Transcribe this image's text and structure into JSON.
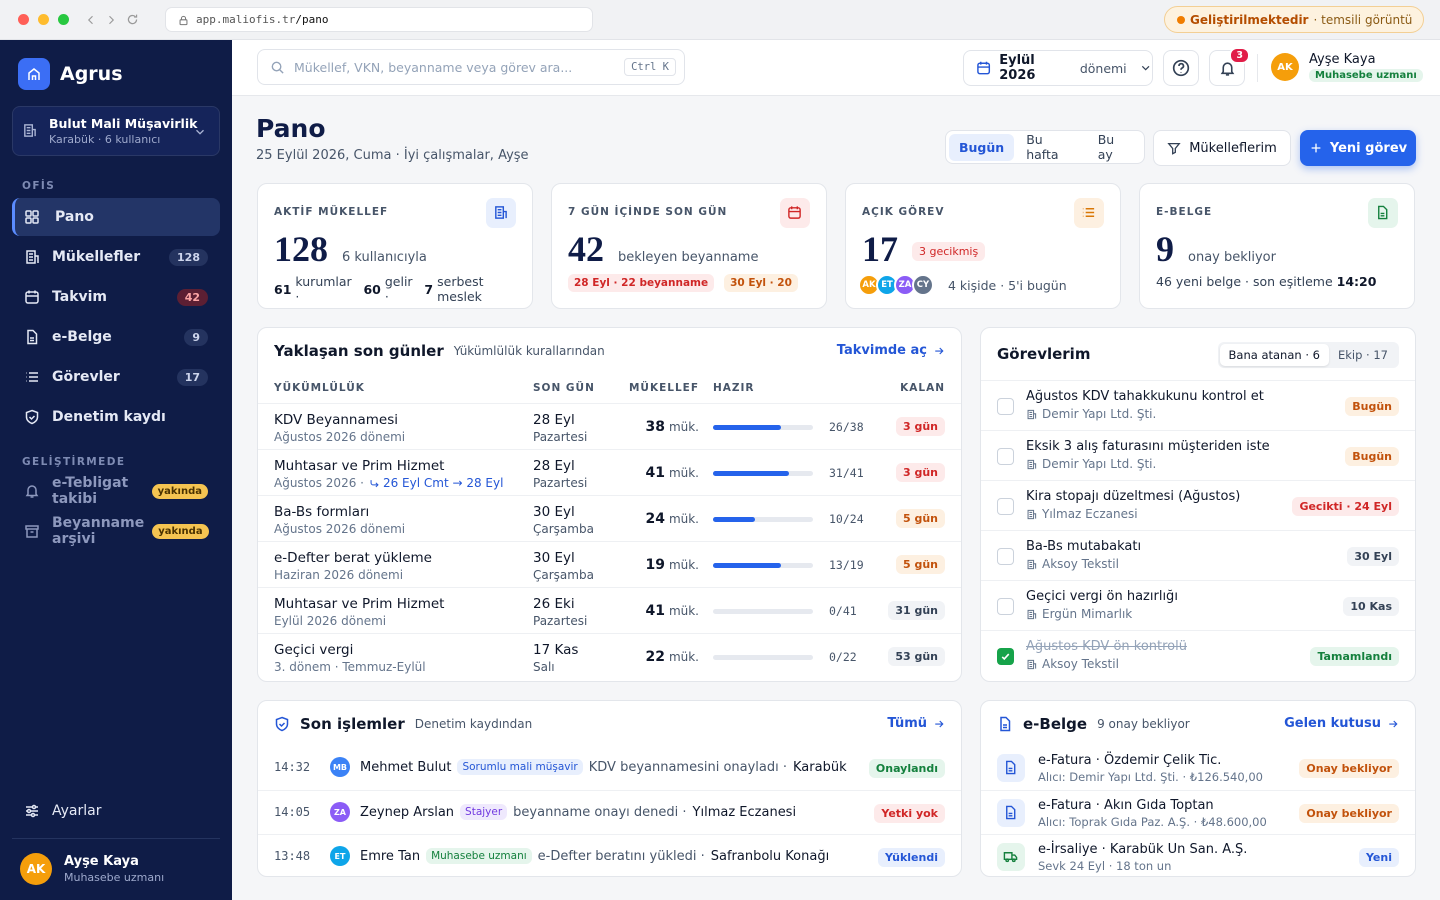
{
  "browser": {
    "url_host": "app.maliofis.tr",
    "url_path": "/pano",
    "banner_title": "Geliştirilmektedir",
    "banner_note": "· temsili görüntü"
  },
  "sidebar": {
    "brand": "Agrus",
    "org": {
      "name": "Bulut Mali Müşavirlik",
      "meta": "Karabük · 6 kullanıcı"
    },
    "sections": [
      {
        "label": "OFİS",
        "items": [
          {
            "label": "Pano",
            "active": true
          },
          {
            "label": "Mükellefler",
            "count": "128",
            "tone": "gray"
          },
          {
            "label": "Takvim",
            "count": "42",
            "tone": "red"
          },
          {
            "label": "e-Belge",
            "count": "9",
            "tone": "gray"
          },
          {
            "label": "Görevler",
            "count": "17",
            "tone": "gray"
          },
          {
            "label": "Denetim kaydı"
          }
        ]
      },
      {
        "label": "GELİŞTİRMEDE",
        "items": [
          {
            "label": "e-Tebligat takibi",
            "tag": "yakında",
            "dim": true
          },
          {
            "label": "Beyanname arşivi",
            "tag": "yakında",
            "dim": true
          }
        ]
      }
    ],
    "settings": "Ayarlar",
    "user": {
      "initials": "AK",
      "name": "Ayşe Kaya",
      "role": "Muhasebe uzmanı"
    }
  },
  "topbar": {
    "search_placeholder": "Mükellef, VKN, beyanname veya görev ara...",
    "shortcut": "Ctrl K",
    "period": {
      "label": "Eylül 2026",
      "suffix": "dönemi"
    },
    "notifications": "3",
    "user": {
      "initials": "AK",
      "name": "Ayşe Kaya",
      "role": "Muhasebe uzmanı"
    }
  },
  "header": {
    "title": "Pano",
    "subtitle": "25 Eylül 2026, Cuma · İyi çalışmalar, Ayşe",
    "range_tabs": [
      "Bugün",
      "Bu hafta",
      "Bu ay"
    ],
    "filter": "Mükelleflerim",
    "new_task": "Yeni görev"
  },
  "stats": [
    {
      "label": "AKTİF MÜKELLEF",
      "value": "128",
      "note": "6 kullanıcıyla",
      "tone": "blue",
      "footer": [
        {
          "text": "61",
          "strong": true
        },
        {
          "text": "kurumlar ·"
        },
        {
          "text": "60",
          "strong": true
        },
        {
          "text": "gelir ·"
        },
        {
          "text": "7",
          "strong": true
        },
        {
          "text": "serbest meslek"
        }
      ]
    },
    {
      "label": "7 GÜN İÇİNDE SON GÜN",
      "value": "42",
      "note": "bekleyen beyanname",
      "tone": "red",
      "chips": [
        {
          "text": "28 Eyl · 22 beyanname",
          "tone": "red"
        },
        {
          "text": "30 Eyl · 20",
          "tone": "orange"
        }
      ]
    },
    {
      "label": "AÇIK GÖREV",
      "value": "17",
      "badge": "3 gecikmiş",
      "tone": "orange",
      "avatars": [
        {
          "initials": "AK",
          "color": "#f59e0b"
        },
        {
          "initials": "ET",
          "color": "#0ea5e9"
        },
        {
          "initials": "ZA",
          "color": "#8b5cf6"
        },
        {
          "initials": "CY",
          "color": "#64748b"
        }
      ],
      "avatars_note": "4 kişide · 5'i bugün"
    },
    {
      "label": "E-BELGE",
      "value": "9",
      "note": "onay bekliyor",
      "tone": "green",
      "footer": [
        {
          "text": "46 yeni belge · son eşitleme"
        },
        {
          "text": "14:20",
          "strong": true
        }
      ]
    }
  ],
  "deadlines": {
    "title": "Yaklaşan son günler",
    "subtitle": "Yükümlülük kurallarından",
    "link": "Takvimde aç",
    "columns": [
      "YÜKÜMLÜLÜK",
      "SON GÜN",
      "MÜKELLEF",
      "HAZIR",
      "KALAN"
    ],
    "rows": [
      {
        "name": "KDV Beyannamesi",
        "period": "Ağustos 2026 dönemi",
        "date": "28 Eyl",
        "weekday": "Pazartesi",
        "count": 38,
        "unit": "mük.",
        "ready": 26,
        "progress": "26/38",
        "remaining": "3 gün",
        "tone": "red"
      },
      {
        "name": "Muhtasar ve Prim Hizmet",
        "period": "Ağustos 2026 ·",
        "shift": "26 Eyl Cmt → 28 Eyl",
        "date": "28 Eyl",
        "weekday": "Pazartesi",
        "count": 41,
        "unit": "mük.",
        "ready": 31,
        "progress": "31/41",
        "remaining": "3 gün",
        "tone": "red"
      },
      {
        "name": "Ba-Bs formları",
        "period": "Ağustos 2026 dönemi",
        "date": "30 Eyl",
        "weekday": "Çarşamba",
        "count": 24,
        "unit": "mük.",
        "ready": 10,
        "progress": "10/24",
        "remaining": "5 gün",
        "tone": "orange"
      },
      {
        "name": "e-Defter berat yükleme",
        "period": "Haziran 2026 dönemi",
        "date": "30 Eyl",
        "weekday": "Çarşamba",
        "count": 19,
        "unit": "mük.",
        "ready": 13,
        "progress": "13/19",
        "remaining": "5 gün",
        "tone": "orange"
      },
      {
        "name": "Muhtasar ve Prim Hizmet",
        "period": "Eylül 2026 dönemi",
        "date": "26 Eki",
        "weekday": "Pazartesi",
        "count": 41,
        "unit": "mük.",
        "ready": 0,
        "progress": "0/41",
        "remaining": "31 gün",
        "tone": "gray"
      },
      {
        "name": "Geçici vergi",
        "period": "3. dönem · Temmuz-Eylül",
        "date": "17 Kas",
        "weekday": "Salı",
        "count": 22,
        "unit": "mük.",
        "ready": 0,
        "progress": "0/22",
        "remaining": "53 gün",
        "tone": "gray"
      }
    ]
  },
  "tasks": {
    "title": "Görevlerim",
    "tabs": [
      "Bana atanan · 6",
      "Ekip · 17"
    ],
    "items": [
      {
        "title": "Ağustos KDV tahakkukunu kontrol et",
        "client": "Demir Yapı Ltd. Şti.",
        "due": "Bugün",
        "tone": "orange"
      },
      {
        "title": "Eksik 3 alış faturasını müşteriden iste",
        "client": "Demir Yapı Ltd. Şti.",
        "due": "Bugün",
        "tone": "orange"
      },
      {
        "title": "Kira stopajı düzeltmesi (Ağustos)",
        "client": "Yılmaz Eczanesi",
        "due": "Gecikti · 24 Eyl",
        "tone": "red"
      },
      {
        "title": "Ba-Bs mutabakatı",
        "client": "Aksoy Tekstil",
        "due": "30 Eyl",
        "tone": "gray"
      },
      {
        "title": "Geçici vergi ön hazırlığı",
        "client": "Ergün Mimarlık",
        "due": "10 Kas",
        "tone": "gray"
      },
      {
        "title": "Ağustos KDV ön kontrolü",
        "client": "Aksoy Tekstil",
        "due": "Tamamlandı",
        "tone": "green",
        "done": true
      }
    ]
  },
  "activity": {
    "title": "Son işlemler",
    "subtitle": "Denetim kaydından",
    "link": "Tümü",
    "items": [
      {
        "time": "14:32",
        "initials": "MB",
        "color": "#3b82f6",
        "name": "Mehmet Bulut",
        "role": "Sorumlu mali müşavir",
        "role_tone": "blue",
        "text": "KDV beyannamesini onayladı ·",
        "target": "Karabük Un San. …",
        "status": "Onaylandı",
        "tone": "green"
      },
      {
        "time": "14:05",
        "initials": "ZA",
        "color": "#8b5cf6",
        "name": "Zeynep Arslan",
        "role": "Stajyer",
        "role_tone": "purple",
        "text": "beyanname onayı denedi ·",
        "target": "Yılmaz Eczanesi",
        "status": "Yetki yok",
        "tone": "red"
      },
      {
        "time": "13:48",
        "initials": "ET",
        "color": "#0ea5e9",
        "name": "Emre Tan",
        "role": "Muhasebe uzmanı",
        "role_tone": "green",
        "text": "e-Defter beratını yükledi ·",
        "target": "Safranbolu Konağı",
        "status": "Yüklendi",
        "tone": "blue"
      }
    ]
  },
  "ebelge": {
    "title": "e-Belge",
    "subtitle": "9 onay bekliyor",
    "link": "Gelen kutusu",
    "items": [
      {
        "title": "e-Fatura · Özdemir Çelik Tic.",
        "sub": "Alıcı: Demir Yapı Ltd. Şti. · ₺126.540,00",
        "status": "Onay bekliyor",
        "tone": "orange",
        "kind": "doc"
      },
      {
        "title": "e-Fatura · Akın Gıda Toptan",
        "sub": "Alıcı: Toprak Gıda Paz. A.Ş. · ₺48.600,00",
        "status": "Onay bekliyor",
        "tone": "orange",
        "kind": "doc"
      },
      {
        "title": "e-İrsaliye · Karabük Un San. A.Ş.",
        "sub": "Sevk 24 Eyl · 18 ton un",
        "status": "Yeni",
        "tone": "blue",
        "kind": "truck"
      }
    ]
  }
}
